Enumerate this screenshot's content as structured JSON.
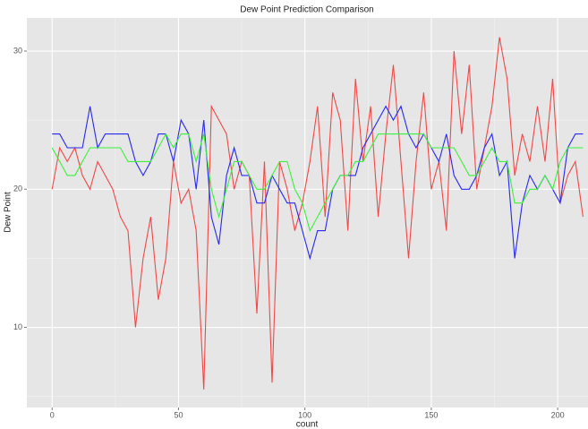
{
  "chart_data": {
    "type": "line",
    "title": "Dew Point Prediction Comparison",
    "x_label": "count",
    "y_label": "Dew Point",
    "x": [
      0,
      3,
      6,
      9,
      12,
      15,
      18,
      21,
      24,
      27,
      30,
      33,
      36,
      39,
      42,
      45,
      48,
      51,
      54,
      57,
      60,
      63,
      66,
      69,
      72,
      75,
      78,
      81,
      84,
      87,
      90,
      93,
      96,
      99,
      102,
      105,
      108,
      111,
      114,
      117,
      120,
      123,
      126,
      129,
      132,
      135,
      138,
      141,
      144,
      147,
      150,
      153,
      156,
      159,
      162,
      165,
      168,
      171,
      174,
      177,
      180,
      183,
      186,
      189,
      192,
      195,
      198,
      201,
      204,
      207,
      210
    ],
    "series": [
      {
        "color": "#f04848",
        "values": [
          20,
          23,
          22,
          23,
          21,
          20,
          22,
          21,
          20,
          18,
          17,
          10,
          15,
          18,
          12,
          15,
          22,
          19,
          20,
          17,
          5.5,
          26,
          25,
          24,
          20,
          22,
          21,
          11,
          22,
          6,
          22,
          20,
          17,
          19,
          22,
          26,
          18,
          27,
          25,
          17,
          28,
          22,
          26,
          18,
          24,
          29,
          22,
          15,
          22,
          27,
          20,
          22,
          17,
          30,
          24,
          29,
          20,
          23,
          26,
          31,
          28,
          21,
          24,
          22,
          26,
          22,
          28,
          19,
          21,
          22,
          18
        ]
      },
      {
        "color": "#2828f0",
        "values": [
          24,
          24,
          23,
          23,
          23,
          26,
          23,
          24,
          24,
          24,
          24,
          22,
          21,
          22,
          24,
          24,
          22,
          25,
          24,
          20,
          25,
          18,
          16,
          21,
          23,
          21,
          21,
          19,
          19,
          21,
          20,
          19,
          19,
          17,
          15,
          17,
          17,
          20,
          21,
          21,
          21,
          23,
          24,
          25,
          26,
          25,
          26,
          24,
          23,
          24,
          23,
          22,
          24,
          21,
          20,
          20,
          21,
          23,
          24,
          21,
          22,
          15,
          19,
          21,
          20,
          21,
          20,
          19,
          23,
          24,
          24
        ]
      },
      {
        "color": "#3cf03c",
        "values": [
          23,
          22,
          21,
          21,
          22,
          23,
          23,
          23,
          23,
          23,
          22,
          22,
          22,
          22,
          23,
          24,
          23,
          24,
          24,
          22,
          24,
          20,
          18,
          20,
          22,
          22,
          21,
          20,
          20,
          21,
          22,
          22,
          20,
          19,
          17,
          18,
          19,
          20,
          21,
          21,
          22,
          22,
          23,
          24,
          24,
          24,
          24,
          24,
          24,
          24,
          23,
          23,
          23,
          23,
          22,
          21,
          21,
          22,
          23,
          22,
          22,
          19,
          19,
          20,
          20,
          21,
          20,
          22,
          23,
          23,
          23
        ]
      }
    ],
    "xlim": [
      -10,
      212
    ],
    "ylim": [
      4.2,
      32.4
    ],
    "xticks": [
      0,
      50,
      100,
      150,
      200
    ],
    "yticks": [
      10,
      20,
      30
    ],
    "x_minor_ticks": [
      25,
      75,
      125,
      175
    ],
    "y_minor_ticks": [
      5,
      15,
      25
    ],
    "grid": true
  }
}
